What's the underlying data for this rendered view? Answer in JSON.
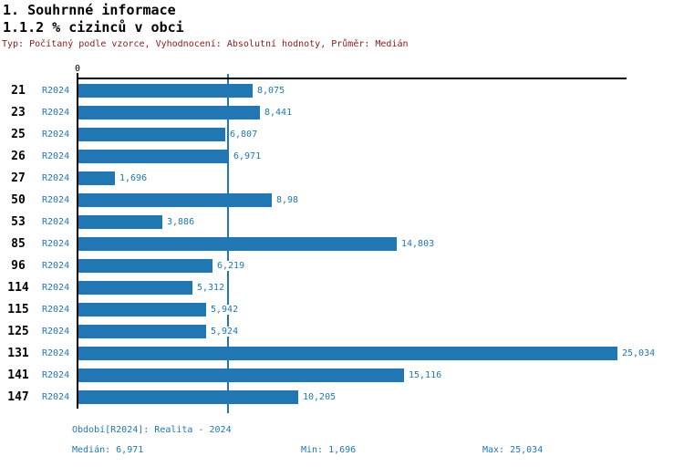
{
  "header": {
    "title_line1": "1. Souhrnné informace",
    "title_line2": "1.1.2 % cizinců v obci",
    "meta_line": "Typ: Počítaný podle vzorce, Vyhodnocení: Absolutní hodnoty, Průměr: Medián"
  },
  "axis": {
    "zero_label": "0"
  },
  "chart_data": {
    "type": "bar",
    "orientation": "horizontal",
    "title": "1.1.2 % cizinců v obci",
    "categories": [
      "21",
      "23",
      "25",
      "26",
      "27",
      "50",
      "53",
      "85",
      "96",
      "114",
      "115",
      "125",
      "131",
      "141",
      "147"
    ],
    "series_label": "R2024",
    "values": [
      8.075,
      8.441,
      6.807,
      6.971,
      1.696,
      8.98,
      3.886,
      14.803,
      6.219,
      5.312,
      5.942,
      5.924,
      25.034,
      15.116,
      10.205
    ],
    "value_labels": [
      "8,075",
      "8,441",
      "6,807",
      "6,971",
      "1,696",
      "8,98",
      "3,886",
      "14,803",
      "6,219",
      "5,312",
      "5,942",
      "5,924",
      "25,034",
      "15,116",
      "10,205"
    ],
    "xlim": [
      0,
      25.4
    ],
    "median": 6.971,
    "min": 1.696,
    "max": 25.034,
    "grid": false,
    "legend": "none",
    "median_line": true
  },
  "footer": {
    "period": "Období[R2024]: Realita - 2024",
    "median": "Medián: 6,971",
    "min": "Min: 1,696",
    "max": "Max: 25,034"
  },
  "colors": {
    "bar_blue": "#2077b4",
    "text_blue": "#2077b4",
    "meta_red": "#8b1a1a",
    "axis_black": "#000000"
  }
}
